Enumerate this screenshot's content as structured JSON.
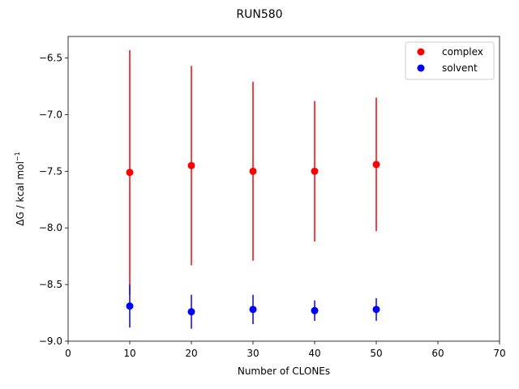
{
  "chart_data": {
    "type": "scatter",
    "title": "RUN580",
    "x_label": "Number of CLONEs",
    "y_label": {
      "text": "ΔG / kcal mol",
      "superscript": "−1"
    },
    "xlim": [
      0,
      70
    ],
    "xticks": [
      0,
      10,
      20,
      30,
      40,
      50,
      60,
      70
    ],
    "ylim": [
      -9.0,
      -6.31
    ],
    "yticks": [
      {
        "value": -9.0,
        "label": "−9.0"
      },
      {
        "value": -8.5,
        "label": "−8.5"
      },
      {
        "value": -8.0,
        "label": "−8.0"
      },
      {
        "value": -7.5,
        "label": "−7.5"
      },
      {
        "value": -7.0,
        "label": "−7.0"
      },
      {
        "value": -6.5,
        "label": "−6.5"
      }
    ],
    "legend": "upper right",
    "series": [
      {
        "name": "complex",
        "color": "#ff0000",
        "x": [
          10,
          20,
          30,
          40,
          50
        ],
        "values": [
          -7.51,
          -7.45,
          -7.5,
          -7.5,
          -7.44
        ],
        "errors": [
          1.08,
          0.88,
          0.79,
          0.62,
          0.59
        ]
      },
      {
        "name": "solvent",
        "color": "#0000ff",
        "x": [
          10,
          20,
          30,
          40,
          50
        ],
        "values": [
          -8.69,
          -8.74,
          -8.72,
          -8.73,
          -8.72
        ],
        "errors": [
          0.19,
          0.15,
          0.13,
          0.09,
          0.1
        ]
      }
    ]
  }
}
